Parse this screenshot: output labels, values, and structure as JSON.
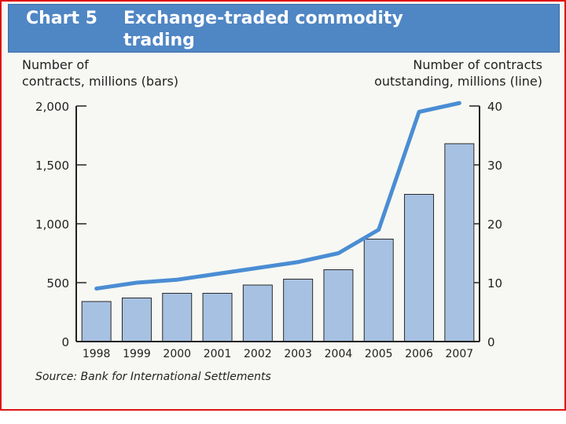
{
  "title": {
    "chart_number": "Chart 5",
    "line1": "Exchange-traded commodity",
    "line2": "trading"
  },
  "source": "Source: Bank for International Settlements",
  "colors": {
    "banner": "#4f86c4",
    "bar_fill": "#a7c1e2",
    "bar_stroke": "#2a2a2a",
    "line": "#4a8dd4",
    "frame": "#e01414"
  },
  "chart_data": {
    "type": "bar",
    "categories": [
      "1998",
      "1999",
      "2000",
      "2001",
      "2002",
      "2003",
      "2004",
      "2005",
      "2006",
      "2007"
    ],
    "series": [
      {
        "name": "Number of contracts, millions (bars)",
        "type": "bar",
        "axis": "left",
        "values": [
          340,
          370,
          410,
          410,
          480,
          530,
          610,
          870,
          1250,
          1680
        ]
      },
      {
        "name": "Number of contracts outstanding, millions (line)",
        "type": "line",
        "axis": "right",
        "values": [
          9,
          10,
          10.5,
          11.5,
          12.5,
          13.5,
          15,
          19,
          39,
          40.5
        ]
      }
    ],
    "y_left": {
      "label": "Number of\ncontracts, millions (bars)",
      "lim": [
        0,
        2000
      ],
      "ticks": [
        0,
        500,
        1000,
        1500,
        2000
      ],
      "tick_labels": [
        "0",
        "500",
        "1,000",
        "1,500",
        "2,000"
      ]
    },
    "y_right": {
      "label": "Number of contracts\noutstanding, millions (line)",
      "lim": [
        0,
        40
      ],
      "ticks": [
        0,
        10,
        20,
        30,
        40
      ],
      "tick_labels": [
        "0",
        "10",
        "20",
        "30",
        "40"
      ]
    },
    "grid": false,
    "legend": "none"
  }
}
